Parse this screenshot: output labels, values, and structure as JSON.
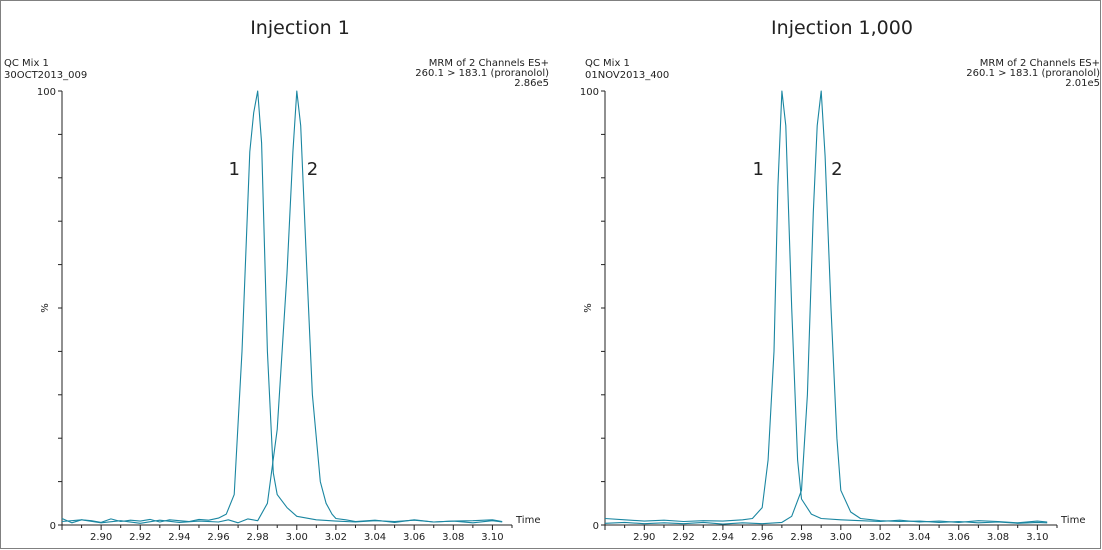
{
  "chart_data": [
    {
      "type": "line",
      "title": "Injection 1",
      "sample_name": "QC Mix 1",
      "file_id": "30OCT2013_009",
      "header_right": [
        "MRM of 2 Channels ES+",
        "260.1 > 183.1 (proranolol)",
        "2.86e5"
      ],
      "xlabel": "Time",
      "ylabel": "%",
      "xlim": [
        2.88,
        3.11
      ],
      "ylim": [
        0,
        100
      ],
      "y_ticks": [
        "0",
        "100"
      ],
      "x_ticks": [
        "2.90",
        "2.92",
        "2.94",
        "2.96",
        "2.98",
        "3.00",
        "3.02",
        "3.04",
        "3.06",
        "3.08",
        "3.10"
      ],
      "peak_labels": [
        {
          "text": "1",
          "x": 2.968,
          "y": 82
        },
        {
          "text": "2",
          "x": 3.008,
          "y": 82
        }
      ],
      "series": [
        {
          "x": [
            2.88,
            2.885,
            2.89,
            2.895,
            2.9,
            2.905,
            2.91,
            2.915,
            2.92,
            2.925,
            2.93,
            2.935,
            2.94,
            2.945,
            2.95,
            2.955,
            2.96,
            2.964,
            2.968,
            2.972,
            2.976,
            2.978,
            2.98,
            2.982,
            2.985,
            2.988,
            2.99,
            2.995,
            3.0,
            3.01,
            3.02,
            3.03,
            3.04,
            3.05,
            3.06,
            3.07,
            3.08,
            3.09,
            3.1,
            3.105
          ],
          "y": [
            1.5,
            0.5,
            1.2,
            1.0,
            0.6,
            1.4,
            0.8,
            1.1,
            0.9,
            1.3,
            0.7,
            1.2,
            1.0,
            0.8,
            1.3,
            1.1,
            1.6,
            2.5,
            7,
            40,
            86,
            95,
            100,
            88,
            40,
            12,
            7,
            4,
            2,
            1.2,
            0.9,
            0.7,
            1.0,
            0.8,
            1.1,
            0.7,
            0.9,
            1.0,
            1.2,
            0.8
          ]
        },
        {
          "x": [
            2.88,
            2.89,
            2.9,
            2.91,
            2.92,
            2.93,
            2.94,
            2.95,
            2.96,
            2.965,
            2.97,
            2.975,
            2.98,
            2.985,
            2.99,
            2.995,
            2.998,
            3.0,
            3.002,
            3.005,
            3.008,
            3.012,
            3.015,
            3.018,
            3.02,
            3.025,
            3.03,
            3.04,
            3.05,
            3.06,
            3.07,
            3.08,
            3.09,
            3.1,
            3.105
          ],
          "y": [
            0.8,
            1.2,
            0.5,
            1.0,
            0.4,
            1.1,
            0.6,
            0.9,
            0.7,
            1.2,
            0.5,
            1.4,
            1.0,
            5,
            22,
            58,
            86,
            100,
            92,
            60,
            30,
            10,
            5,
            2.5,
            1.5,
            1.2,
            0.8,
            1.1,
            0.6,
            1.2,
            0.7,
            0.9,
            0.5,
            1.0,
            0.7
          ]
        }
      ]
    },
    {
      "type": "line",
      "title": "Injection 1,000",
      "sample_name": "QC Mix 1",
      "file_id": "01NOV2013_400",
      "header_right": [
        "MRM of 2 Channels ES+",
        "260.1 > 183.1 (proranolol)",
        "2.01e5"
      ],
      "xlabel": "Time",
      "ylabel": "%",
      "xlim": [
        2.88,
        3.11
      ],
      "ylim": [
        0,
        100
      ],
      "y_ticks": [
        "0",
        "100"
      ],
      "x_ticks": [
        "2.90",
        "2.92",
        "2.94",
        "2.96",
        "2.98",
        "3.00",
        "3.02",
        "3.04",
        "3.06",
        "3.08",
        "3.10"
      ],
      "peak_labels": [
        {
          "text": "1",
          "x": 2.958,
          "y": 82
        },
        {
          "text": "2",
          "x": 2.998,
          "y": 82
        }
      ],
      "series": [
        {
          "x": [
            2.88,
            2.89,
            2.9,
            2.91,
            2.92,
            2.93,
            2.94,
            2.95,
            2.955,
            2.96,
            2.963,
            2.966,
            2.968,
            2.97,
            2.972,
            2.975,
            2.978,
            2.98,
            2.985,
            2.99,
            3.0,
            3.01,
            3.02,
            3.03,
            3.04,
            3.05,
            3.06,
            3.07,
            3.08,
            3.09,
            3.1,
            3.105
          ],
          "y": [
            1.5,
            1.2,
            0.9,
            1.1,
            0.8,
            1.0,
            0.9,
            1.2,
            1.5,
            4,
            15,
            40,
            78,
            100,
            92,
            50,
            15,
            6,
            2.5,
            1.5,
            1.2,
            1.0,
            0.8,
            1.1,
            0.7,
            0.9,
            0.6,
            1.0,
            0.8,
            0.5,
            0.9,
            0.7
          ]
        },
        {
          "x": [
            2.88,
            2.89,
            2.9,
            2.91,
            2.92,
            2.93,
            2.94,
            2.95,
            2.96,
            2.97,
            2.975,
            2.98,
            2.983,
            2.986,
            2.988,
            2.99,
            2.992,
            2.995,
            2.998,
            3.0,
            3.005,
            3.01,
            3.02,
            3.03,
            3.04,
            3.05,
            3.06,
            3.07,
            3.08,
            3.09,
            3.1,
            3.105
          ],
          "y": [
            0.4,
            0.6,
            0.3,
            0.5,
            0.3,
            0.6,
            0.2,
            0.5,
            0.3,
            0.6,
            2,
            8,
            30,
            72,
            92,
            100,
            85,
            50,
            20,
            8,
            3,
            1.5,
            1.0,
            0.8,
            0.9,
            0.6,
            0.8,
            0.5,
            0.7,
            0.4,
            0.6,
            0.5
          ]
        }
      ]
    }
  ]
}
